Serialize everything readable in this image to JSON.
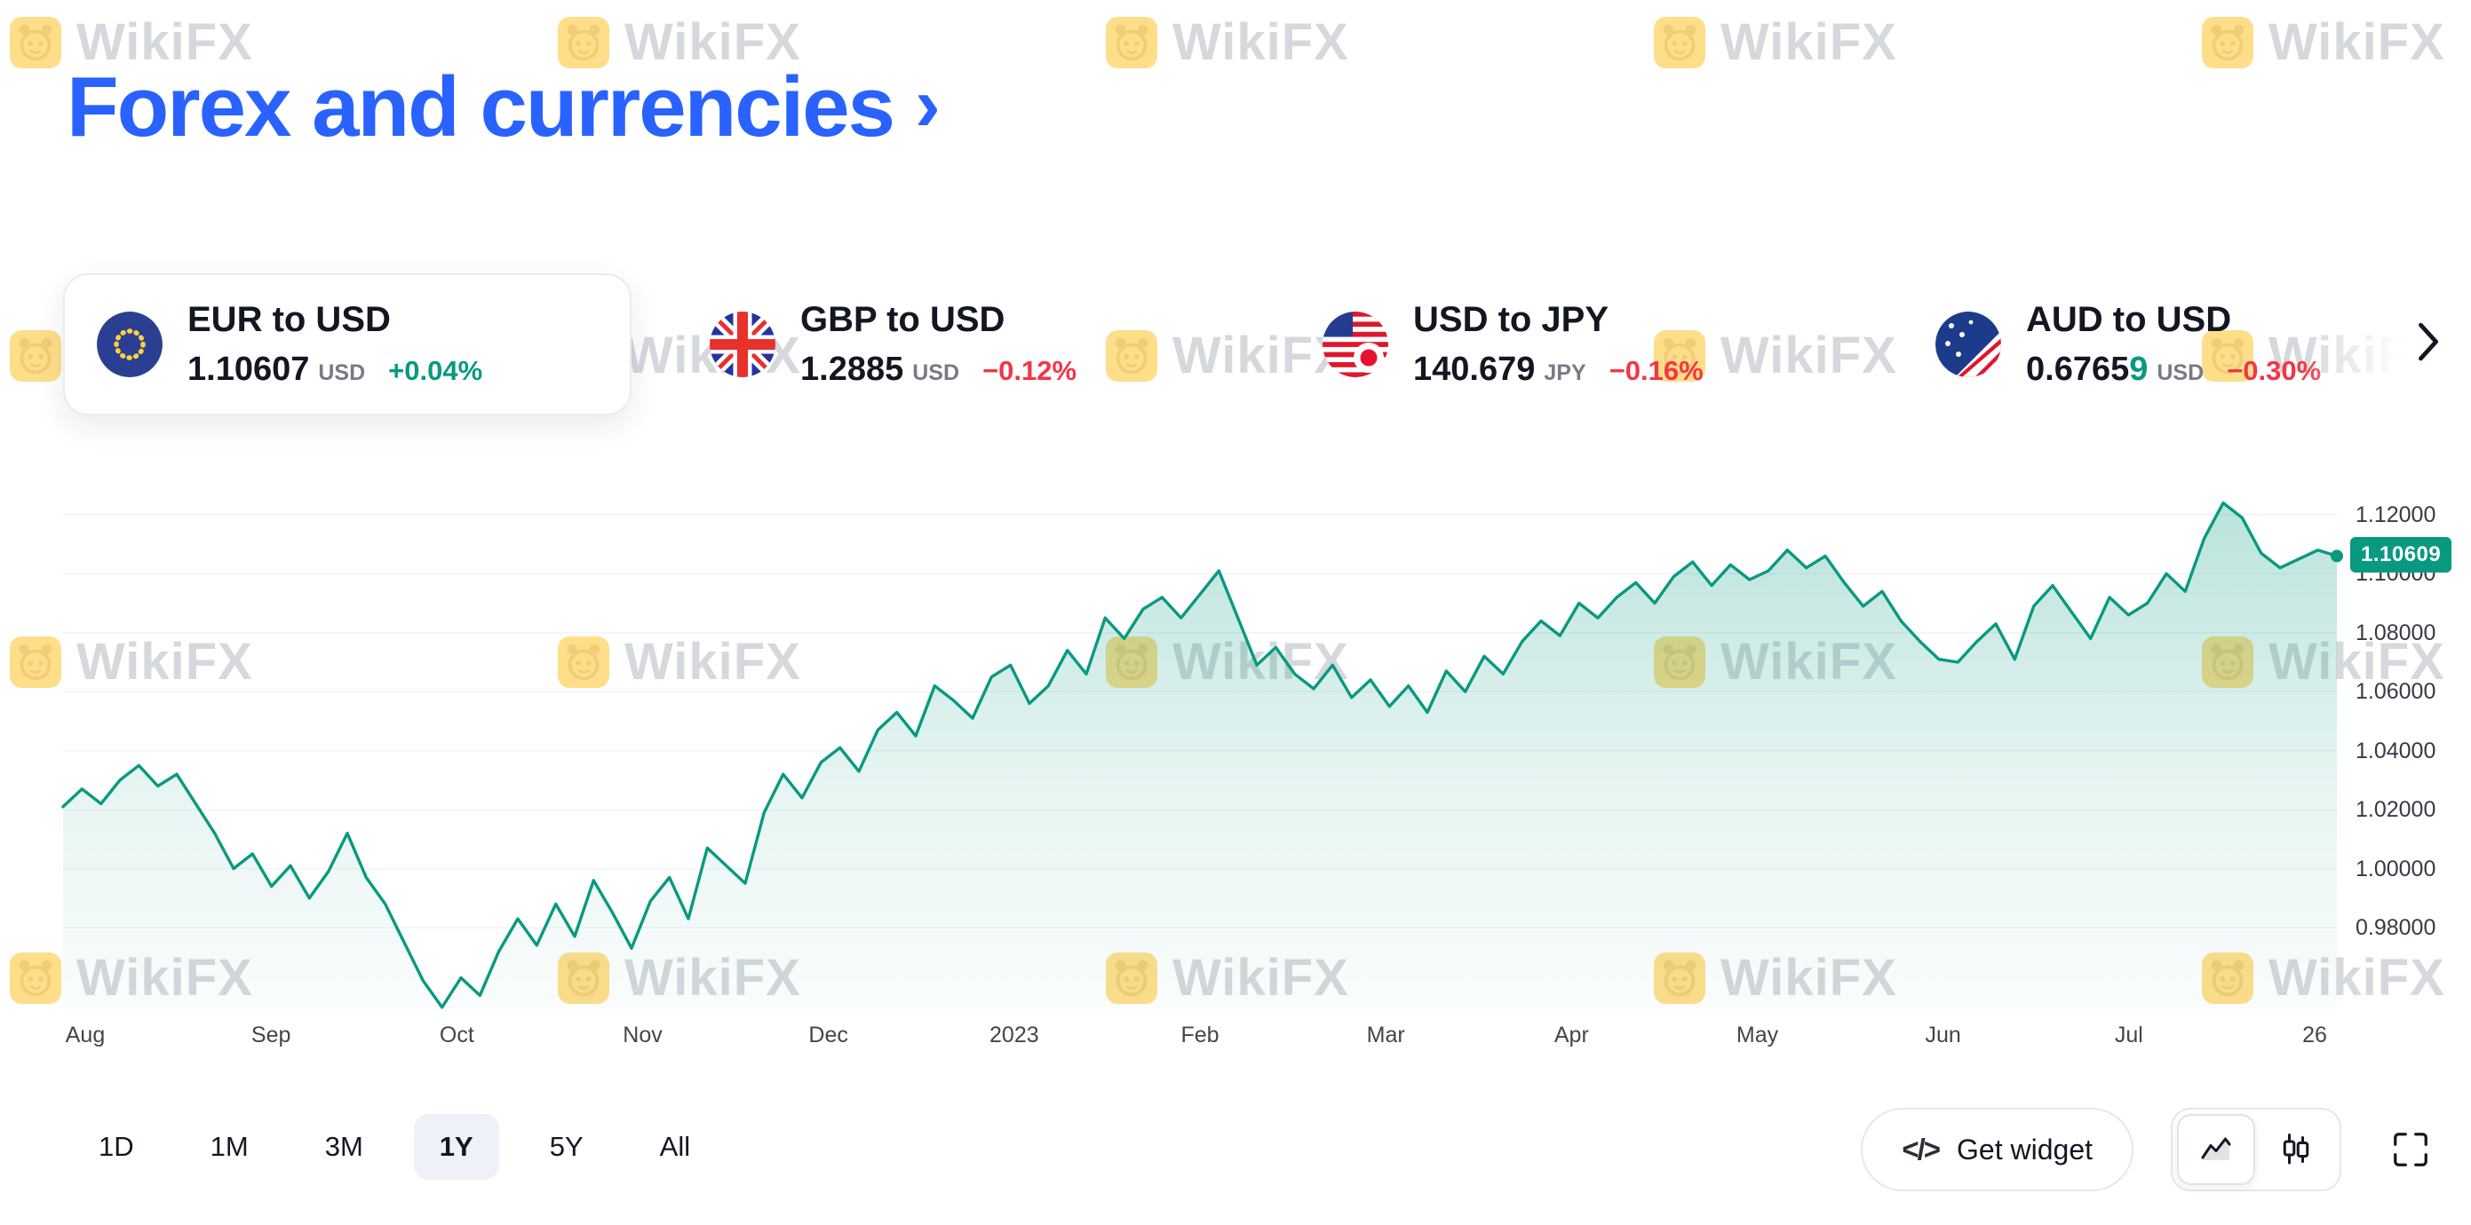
{
  "header": {
    "title": "Forex and currencies",
    "chevron": "›"
  },
  "watermark": {
    "text": "WikiFX"
  },
  "cards": [
    {
      "pair": "EUR to USD",
      "price": "1.10607",
      "price_tick": "",
      "unit": "USD",
      "change": "+0.04%",
      "trend": "up",
      "active": true
    },
    {
      "pair": "GBP to USD",
      "price": "1.2885",
      "price_tick": "",
      "unit": "USD",
      "change": "−0.12%",
      "trend": "down",
      "active": false
    },
    {
      "pair": "USD to JPY",
      "price": "140.679",
      "price_tick": "",
      "unit": "JPY",
      "change": "−0.16%",
      "trend": "down",
      "active": false
    },
    {
      "pair": "AUD to USD",
      "price": "0.6765",
      "price_tick": "9",
      "unit": "USD",
      "change": "−0.30%",
      "trend": "down",
      "active": false
    }
  ],
  "chart_data": {
    "type": "area",
    "pair": "EUR to USD",
    "range_selected": "1Y",
    "line_color": "#089981",
    "fill_color": "#089981",
    "grid": "faint-horizontal",
    "legend": "none",
    "ylim": [
      0.952,
      1.132
    ],
    "y_ticks": [
      1.12,
      1.1,
      1.08,
      1.06,
      1.04,
      1.02,
      1.0,
      0.98
    ],
    "x_ticks": [
      "Aug",
      "Sep",
      "Oct",
      "Nov",
      "Dec",
      "2023",
      "Feb",
      "Mar",
      "Apr",
      "May",
      "Jun",
      "Jul",
      "26"
    ],
    "last_price_label": "1.10609",
    "values": [
      1.021,
      1.027,
      1.022,
      1.03,
      1.035,
      1.028,
      1.032,
      1.022,
      1.012,
      1.0,
      1.005,
      0.994,
      1.001,
      0.99,
      0.999,
      1.012,
      0.997,
      0.988,
      0.975,
      0.962,
      0.953,
      0.963,
      0.957,
      0.972,
      0.983,
      0.974,
      0.988,
      0.977,
      0.996,
      0.985,
      0.973,
      0.989,
      0.997,
      0.983,
      1.007,
      1.001,
      0.995,
      1.019,
      1.032,
      1.024,
      1.036,
      1.041,
      1.033,
      1.047,
      1.053,
      1.045,
      1.062,
      1.057,
      1.051,
      1.065,
      1.069,
      1.056,
      1.062,
      1.074,
      1.066,
      1.085,
      1.078,
      1.088,
      1.092,
      1.085,
      1.093,
      1.101,
      1.085,
      1.069,
      1.075,
      1.066,
      1.061,
      1.069,
      1.058,
      1.064,
      1.055,
      1.062,
      1.053,
      1.067,
      1.06,
      1.072,
      1.066,
      1.077,
      1.084,
      1.079,
      1.09,
      1.085,
      1.092,
      1.097,
      1.09,
      1.099,
      1.104,
      1.096,
      1.103,
      1.098,
      1.101,
      1.108,
      1.102,
      1.106,
      1.097,
      1.089,
      1.094,
      1.084,
      1.077,
      1.071,
      1.07,
      1.077,
      1.083,
      1.071,
      1.089,
      1.096,
      1.087,
      1.078,
      1.092,
      1.086,
      1.09,
      1.1,
      1.094,
      1.112,
      1.124,
      1.119,
      1.107,
      1.102,
      1.105,
      1.108,
      1.106
    ]
  },
  "ranges": {
    "options": [
      "1D",
      "1M",
      "3M",
      "1Y",
      "5Y",
      "All"
    ],
    "selected": "1Y"
  },
  "toolbar": {
    "get_widget_icon": "</>",
    "get_widget_label": "Get widget"
  }
}
